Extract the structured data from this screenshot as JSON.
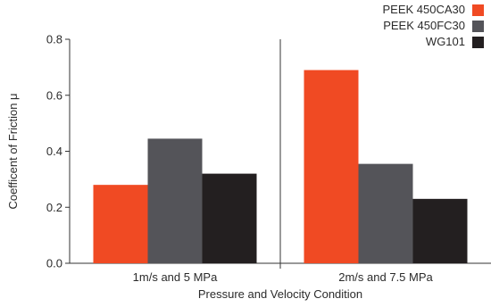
{
  "chart_data": {
    "type": "bar",
    "title": "",
    "xlabel": "Pressure and Velocity Condition",
    "ylabel": "Coefficent of Friction μ",
    "categories": [
      "1m/s and 5 MPa",
      "2m/s and 7.5 MPa"
    ],
    "ylim": [
      0,
      0.8
    ],
    "yticks": [
      "0.0",
      "0.2",
      "0.4",
      "0.6",
      "0.8"
    ],
    "series": [
      {
        "name": "PEEK 450CA30",
        "color": "#f04a23",
        "values": [
          0.28,
          0.69
        ]
      },
      {
        "name": "PEEK 450FC30",
        "color": "#545459",
        "values": [
          0.445,
          0.355
        ]
      },
      {
        "name": "WG101",
        "color": "#231f20",
        "values": [
          0.32,
          0.23
        ]
      }
    ],
    "legend_placement": "top-right",
    "grid": false
  }
}
